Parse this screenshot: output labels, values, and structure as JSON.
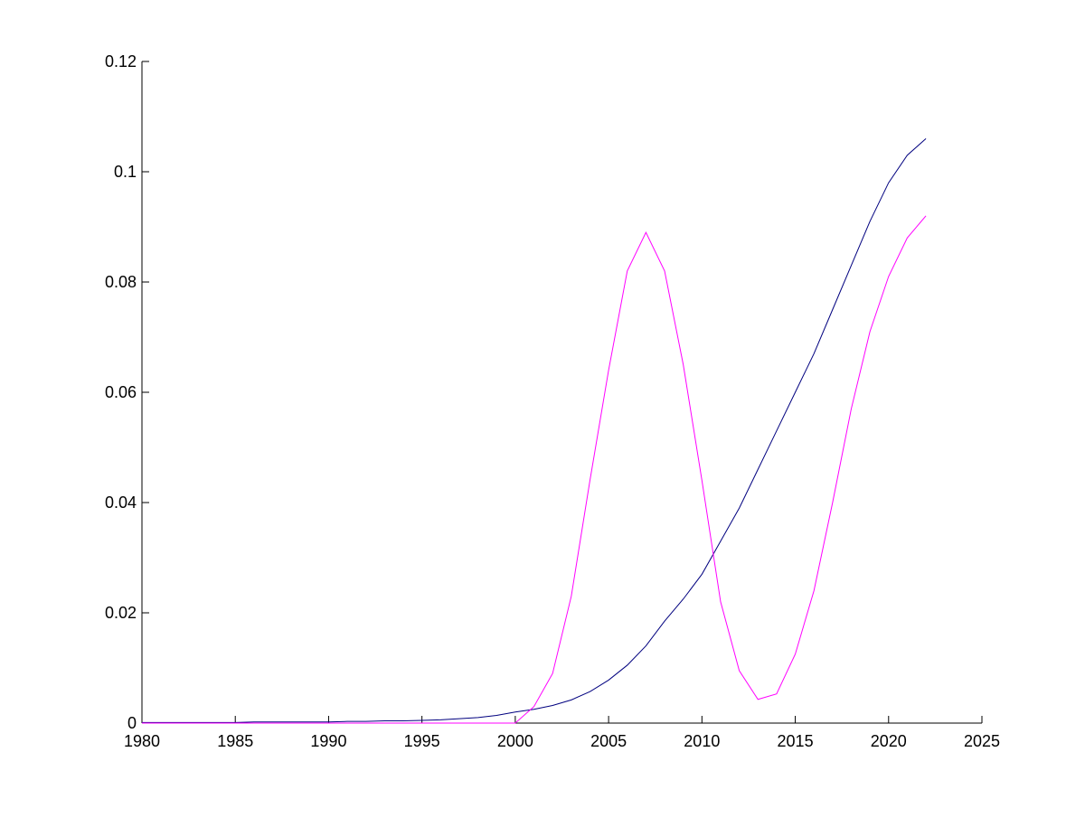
{
  "chart_data": {
    "type": "line",
    "x": [
      1980,
      1981,
      1982,
      1983,
      1984,
      1985,
      1986,
      1987,
      1988,
      1989,
      1990,
      1991,
      1992,
      1993,
      1994,
      1995,
      1996,
      1997,
      1998,
      1999,
      2000,
      2001,
      2002,
      2003,
      2004,
      2005,
      2006,
      2007,
      2008,
      2009,
      2010,
      2011,
      2012,
      2013,
      2014,
      2015,
      2016,
      2017,
      2018,
      2019,
      2020,
      2021,
      2022
    ],
    "series": [
      {
        "color": "#00007f",
        "values": [
          0.0001,
          0.0001,
          0.0001,
          0.0001,
          0.0001,
          0.0001,
          0.0002,
          0.0002,
          0.0002,
          0.0002,
          0.0002,
          0.0003,
          0.0003,
          0.0004,
          0.0004,
          0.0005,
          0.0006,
          0.0008,
          0.001,
          0.0014,
          0.002,
          0.0025,
          0.0032,
          0.0042,
          0.0057,
          0.0078,
          0.0105,
          0.014,
          0.0185,
          0.0225,
          0.027,
          0.033,
          0.039,
          0.046,
          0.053,
          0.06,
          0.067,
          0.075,
          0.083,
          0.091,
          0.098,
          0.103,
          0.106
        ]
      },
      {
        "color": "#ff00ff",
        "values": [
          0,
          0,
          0,
          0,
          0,
          0,
          0,
          0,
          0,
          0,
          0,
          0,
          0,
          0,
          0,
          0,
          0,
          0,
          0,
          0,
          0,
          0.003,
          0.009,
          0.023,
          0.044,
          0.064,
          0.082,
          0.089,
          0.082,
          0.065,
          0.044,
          0.022,
          0.0095,
          0.0043,
          0.0053,
          0.0125,
          0.024,
          0.04,
          0.057,
          0.071,
          0.081,
          0.088,
          0.092
        ]
      }
    ],
    "xlim": [
      1980,
      2025
    ],
    "xticks": [
      1980,
      1985,
      1990,
      1995,
      2000,
      2005,
      2010,
      2015,
      2020,
      2025
    ],
    "ylim": [
      0,
      0.12
    ],
    "yticks": [
      0,
      0.02,
      0.04,
      0.06,
      0.08,
      0.1,
      0.12
    ]
  }
}
